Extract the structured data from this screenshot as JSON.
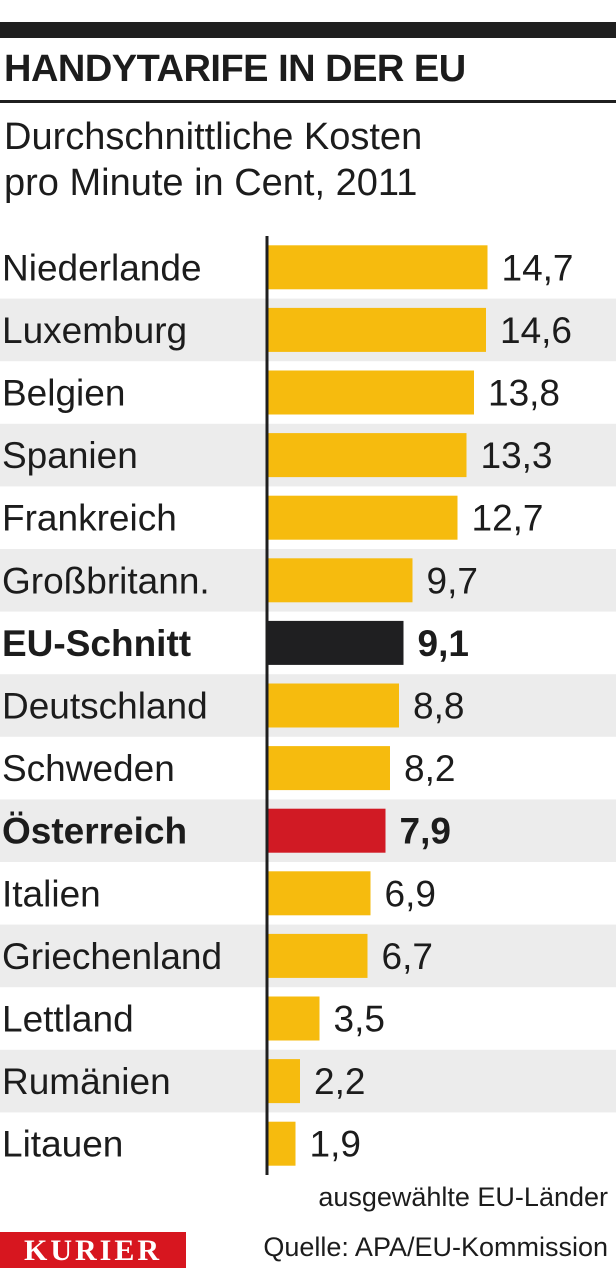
{
  "header": {
    "title": "HANDYTARIFE IN DER EU",
    "subtitle_line1": "Durchschnittliche Kosten",
    "subtitle_line2": "pro Minute in Cent, 2011"
  },
  "footer": {
    "note": "ausgewählte EU-Länder",
    "source": "Quelle: APA/EU-Kommission",
    "logo_text": "KURIER"
  },
  "colors": {
    "bar_default": "#f6bb0e",
    "bar_eu_average": "#1f1f21",
    "bar_austria": "#d11a24",
    "stripe": "#ececec",
    "logo": "#d7161f"
  },
  "chart_data": {
    "type": "bar",
    "orientation": "horizontal",
    "title": "HANDYTARIFE IN DER EU",
    "subtitle": "Durchschnittliche Kosten pro Minute in Cent, 2011",
    "categories": [
      "Niederlande",
      "Luxemburg",
      "Belgien",
      "Spanien",
      "Frankreich",
      "Großbritann.",
      "EU-Schnitt",
      "Deutschland",
      "Schweden",
      "Österreich",
      "Italien",
      "Griechenland",
      "Lettland",
      "Rumänien",
      "Litauen"
    ],
    "values": [
      14.7,
      14.6,
      13.8,
      13.3,
      12.7,
      9.7,
      9.1,
      8.8,
      8.2,
      7.9,
      6.9,
      6.7,
      3.5,
      2.2,
      1.9
    ],
    "value_labels": [
      "14,7",
      "14,6",
      "13,8",
      "13,3",
      "12,7",
      "9,7",
      "9,1",
      "8,8",
      "8,2",
      "7,9",
      "6,9",
      "6,7",
      "3,5",
      "2,2",
      "1,9"
    ],
    "highlight": {
      "EU-Schnitt": "bar_eu_average",
      "Österreich": "bar_austria"
    },
    "bold_categories": [
      "EU-Schnitt",
      "Österreich"
    ],
    "xlim": [
      0,
      15
    ],
    "grid": false,
    "alternating_row_stripes": true
  }
}
